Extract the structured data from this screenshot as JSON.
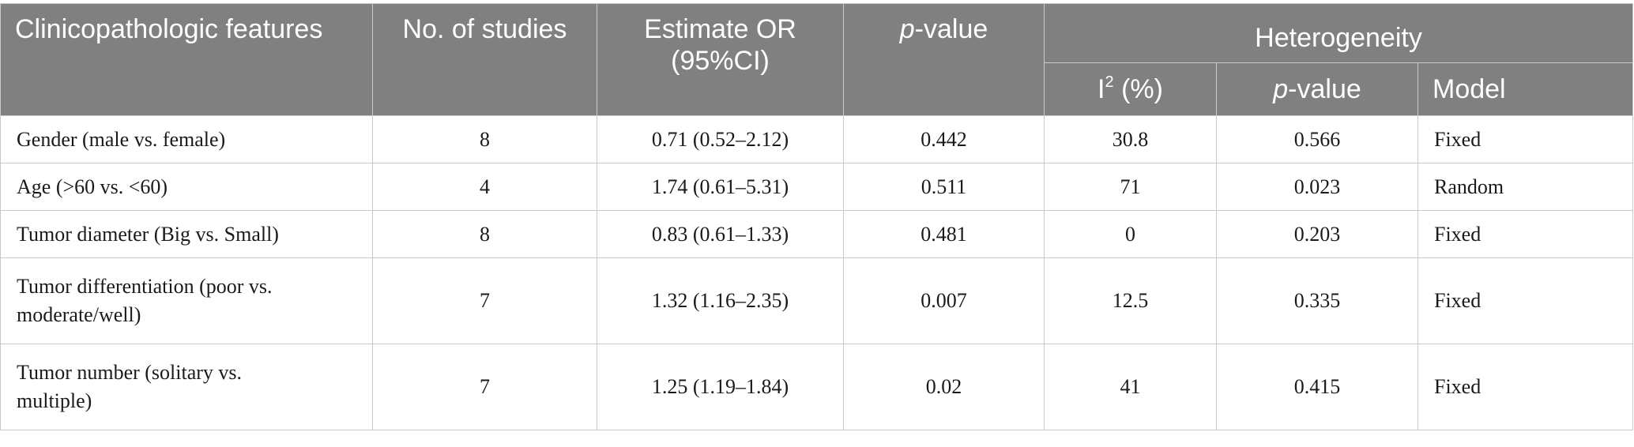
{
  "header": {
    "col_feature": "Clinicopathologic features",
    "col_studies": "No. of studies",
    "col_estimate": "Estimate OR (95%CI)",
    "col_pvalue_italic": "p",
    "col_pvalue_rest": "-value",
    "heterogeneity": "Heterogeneity",
    "sub_i2_base": "I",
    "sub_i2_sup": "2",
    "sub_i2_rest": " (%)",
    "sub_pvalue_italic": "p",
    "sub_pvalue_rest": "-value",
    "sub_model": "Model"
  },
  "rows": [
    {
      "feature": "Gender (male vs. female)",
      "studies": "8",
      "estimate": "0.71 (0.52–2.12)",
      "pvalue": "0.442",
      "i2": "30.8",
      "het_p": "0.566",
      "model": "Fixed"
    },
    {
      "feature": "Age (>60 vs. <60)",
      "studies": "4",
      "estimate": "1.74 (0.61–5.31)",
      "pvalue": "0.511",
      "i2": "71",
      "het_p": "0.023",
      "model": "Random"
    },
    {
      "feature": "Tumor diameter (Big vs. Small)",
      "studies": "8",
      "estimate": "0.83 (0.61–1.33)",
      "pvalue": "0.481",
      "i2": "0",
      "het_p": "0.203",
      "model": "Fixed"
    },
    {
      "feature_line1": "Tumor differentiation (poor vs.",
      "feature_line2": "moderate/well)",
      "studies": "7",
      "estimate": "1.32 (1.16–2.35)",
      "pvalue": "0.007",
      "i2": "12.5",
      "het_p": "0.335",
      "model": "Fixed"
    },
    {
      "feature_line1": "Tumor number (solitary vs.",
      "feature_line2": "multiple)",
      "studies": "7",
      "estimate": "1.25 (1.19–1.84)",
      "pvalue": "0.02",
      "i2": "41",
      "het_p": "0.415",
      "model": "Fixed"
    }
  ]
}
